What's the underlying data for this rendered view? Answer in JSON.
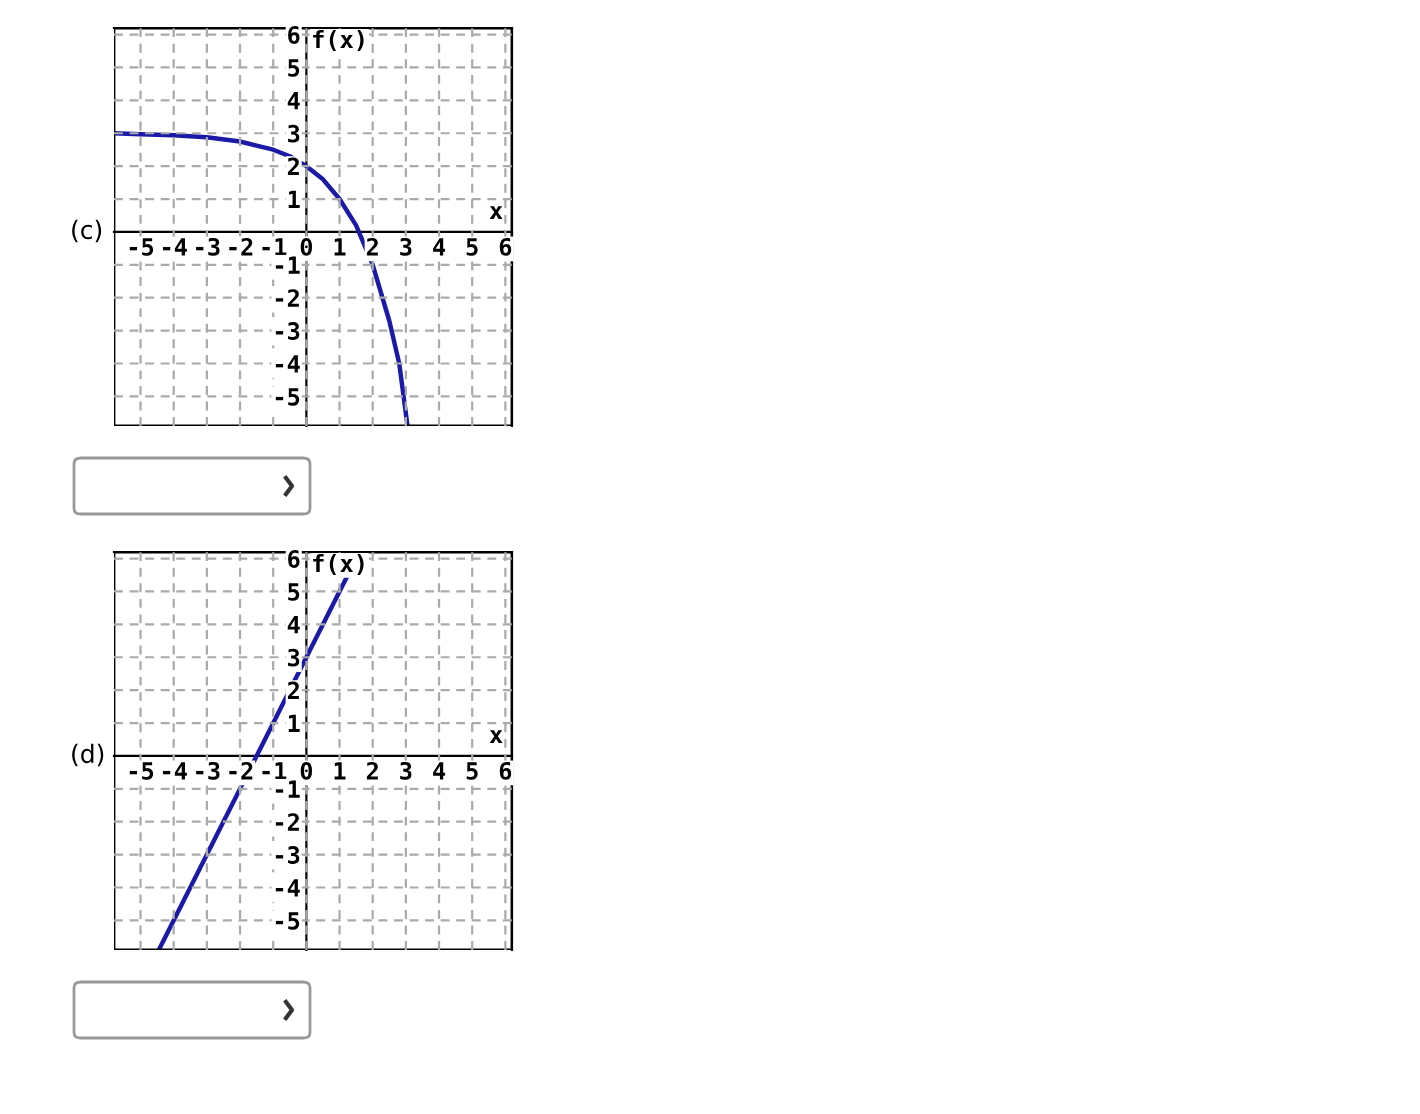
{
  "chart_data": [
    {
      "type": "line",
      "xlabel": "x",
      "ylabel": "f(x)",
      "annotations": [
        "(c)"
      ],
      "xlim": [
        -5.8,
        6.2
      ],
      "ylim": [
        -5.9,
        6.2
      ],
      "xticks": [
        -5,
        -4,
        -3,
        -2,
        -1,
        0,
        1,
        2,
        3,
        4,
        5,
        6
      ],
      "yticks": [
        -5,
        -4,
        -3,
        -2,
        -1,
        1,
        2,
        3,
        4,
        5,
        6
      ],
      "grid": true,
      "line_style": "solid",
      "series": [
        {
          "color": "#1a1aa6",
          "x": [
            -5.8,
            -5,
            -4,
            -3,
            -2,
            -1,
            -0.5,
            0,
            0.5,
            1,
            1.5,
            2,
            2.5,
            2.8,
            3.05
          ],
          "values": [
            3.0,
            2.97,
            2.94,
            2.88,
            2.75,
            2.5,
            2.3,
            2.0,
            1.6,
            1.0,
            0.2,
            -1.0,
            -2.7,
            -4.0,
            -5.9
          ]
        }
      ]
    },
    {
      "type": "line",
      "xlabel": "x",
      "ylabel": "f(x)",
      "annotations": [
        "(d)"
      ],
      "xlim": [
        -5.8,
        6.2
      ],
      "ylim": [
        -5.9,
        6.2
      ],
      "xticks": [
        -5,
        -4,
        -3,
        -2,
        -1,
        0,
        1,
        2,
        3,
        4,
        5,
        6
      ],
      "yticks": [
        -5,
        -4,
        -3,
        -2,
        -1,
        1,
        2,
        3,
        4,
        5,
        6
      ],
      "grid": true,
      "line_style": "solid",
      "series": [
        {
          "color": "#1a1aa6",
          "x": [
            -4.45,
            1.6
          ],
          "values": [
            -5.9,
            6.2
          ]
        }
      ]
    }
  ]
}
